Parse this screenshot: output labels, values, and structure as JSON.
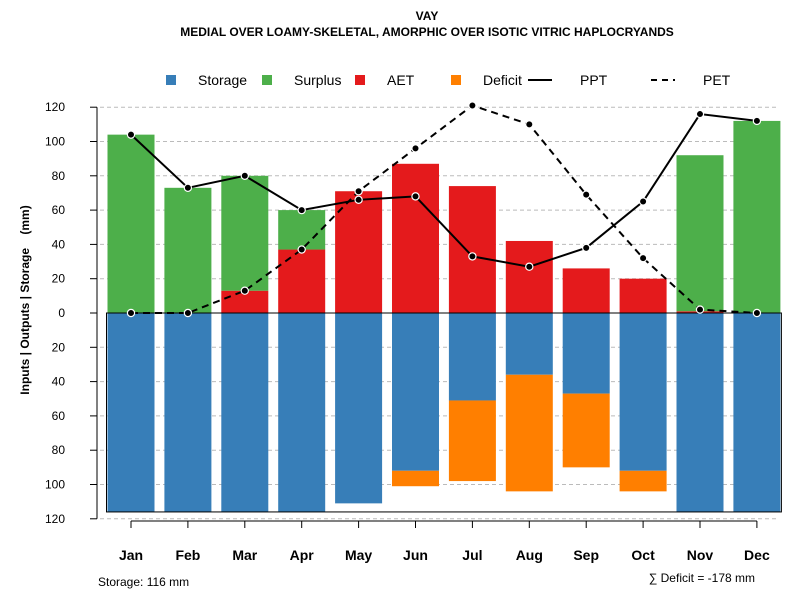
{
  "chart_data": {
    "type": "bar",
    "title": "VAY",
    "subtitle": "MEDIAL OVER LOAMY-SKELETAL, AMORPHIC OVER ISOTIC VITRIC HAPLOCRYANDS",
    "ylabel": "Inputs | Outputs | Storage    (mm)",
    "ylim": [
      -120,
      130
    ],
    "yticks": [
      -120,
      -100,
      -80,
      -60,
      -40,
      -20,
      0,
      20,
      40,
      60,
      80,
      100,
      120
    ],
    "ytick_labels": [
      "120",
      "100",
      "80",
      "60",
      "40",
      "20",
      "0",
      "20",
      "40",
      "60",
      "80",
      "100",
      "120"
    ],
    "categories": [
      "Jan",
      "Feb",
      "Mar",
      "Apr",
      "May",
      "Jun",
      "Jul",
      "Aug",
      "Sep",
      "Oct",
      "Nov",
      "Dec"
    ],
    "series": [
      {
        "name": "AET",
        "color": "#E41A1C",
        "values": [
          0,
          0,
          13,
          37,
          71,
          87,
          74,
          42,
          26,
          20,
          1,
          0
        ]
      },
      {
        "name": "Surplus",
        "color": "#4DAF4A",
        "values": [
          104,
          73,
          67,
          23,
          0,
          0,
          0,
          0,
          0,
          0,
          91,
          112
        ]
      },
      {
        "name": "Storage",
        "color": "#377EB8",
        "values": [
          116,
          116,
          116,
          116,
          111,
          92,
          51,
          36,
          47,
          92,
          116,
          116
        ]
      },
      {
        "name": "Deficit",
        "color": "#FF7F00",
        "values": [
          0,
          0,
          0,
          0,
          0,
          9,
          47,
          68,
          43,
          12,
          0,
          0
        ]
      },
      {
        "name": "PPT",
        "color": "#000000",
        "line": "solid",
        "values": [
          104,
          73,
          80,
          60,
          66,
          68,
          33,
          27,
          38,
          65,
          116,
          112
        ]
      },
      {
        "name": "PET",
        "color": "#000000",
        "line": "dashed",
        "values": [
          0,
          0,
          13,
          37,
          71,
          96,
          121,
          110,
          69,
          32,
          2,
          0
        ]
      }
    ],
    "legend": {
      "position": "top",
      "entries": [
        {
          "label": "Storage",
          "kind": "box",
          "color": "#377EB8"
        },
        {
          "label": "Surplus",
          "kind": "box",
          "color": "#4DAF4A"
        },
        {
          "label": "AET",
          "kind": "box",
          "color": "#E41A1C"
        },
        {
          "label": "Deficit",
          "kind": "box",
          "color": "#FF7F00"
        },
        {
          "label": "PPT",
          "kind": "line",
          "color": "#000000"
        },
        {
          "label": "PET",
          "kind": "dashed",
          "color": "#000000"
        }
      ]
    },
    "storage_capacity": 116,
    "footer_left": "Storage: 116 mm",
    "footer_right": "∑ Deficit = -178 mm",
    "grid": true
  }
}
